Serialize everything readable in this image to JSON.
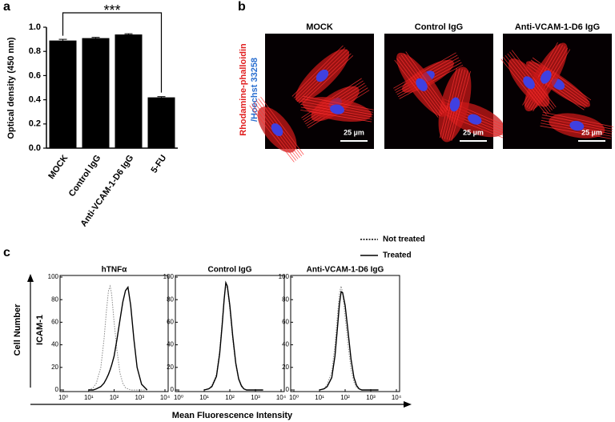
{
  "chart_data": [
    {
      "type": "bar",
      "panel": "a",
      "ylabel": "Optical density (450 nm)",
      "categories": [
        "MOCK",
        "Control IgG",
        "Anti-VCAM-1-D6 IgG",
        "5-FU"
      ],
      "values": [
        0.89,
        0.91,
        0.94,
        0.42
      ],
      "errors": [
        0.01,
        0.006,
        0.006,
        0.006
      ],
      "color": "#000000",
      "ylim": [
        0,
        1
      ],
      "yticks": [
        {
          "value": 0,
          "label": "0.0"
        },
        0.2,
        0.4,
        0.6,
        0.8,
        {
          "value": 1,
          "label": "1.0"
        }
      ],
      "annotation": "***"
    },
    {
      "type": "line",
      "panel": "c",
      "title": "hTNFα",
      "xscale": "log",
      "x": [
        10,
        15,
        20,
        30,
        40,
        50,
        60,
        70,
        80,
        100,
        130,
        170,
        220,
        280,
        350,
        450,
        600,
        800,
        1200,
        2000
      ],
      "series": [
        {
          "name": "Not treated",
          "color": "#888888",
          "dash": "dotted",
          "values": [
            0,
            2,
            6,
            20,
            45,
            70,
            88,
            92,
            85,
            60,
            35,
            15,
            6,
            2,
            1,
            0,
            0,
            0,
            0,
            0
          ]
        },
        {
          "name": "Treated",
          "color": "#000000",
          "dash": "solid",
          "values": [
            0,
            0,
            1,
            3,
            6,
            10,
            14,
            18,
            22,
            30,
            45,
            62,
            78,
            88,
            91,
            75,
            45,
            20,
            5,
            0
          ]
        }
      ],
      "xlim": [
        1,
        10000
      ],
      "xticks": [
        {
          "value": 1,
          "label": "10⁰"
        },
        {
          "value": 10,
          "label": "10¹"
        },
        {
          "value": 100,
          "label": "10²"
        },
        {
          "value": 1000,
          "label": "10³"
        },
        {
          "value": 10000,
          "label": "10⁴"
        }
      ],
      "ylim": [
        0,
        100
      ],
      "yticks": [
        0,
        20,
        40,
        60,
        80,
        100
      ]
    },
    {
      "type": "line",
      "panel": "c",
      "title": "Control IgG",
      "xscale": "log",
      "x": [
        10,
        15,
        20,
        30,
        40,
        50,
        60,
        70,
        80,
        100,
        130,
        170,
        220,
        280,
        350,
        450,
        600,
        800,
        1200,
        2000
      ],
      "series": [
        {
          "name": "Not treated",
          "color": "#888888",
          "dash": "dotted",
          "values": [
            0,
            1,
            4,
            14,
            35,
            60,
            82,
            93,
            90,
            72,
            45,
            22,
            9,
            3,
            1,
            0,
            0,
            0,
            0,
            0
          ]
        },
        {
          "name": "Treated",
          "color": "#000000",
          "dash": "solid",
          "values": [
            0,
            1,
            3,
            12,
            32,
            57,
            80,
            95,
            92,
            75,
            48,
            24,
            10,
            4,
            1,
            0,
            0,
            0,
            0,
            0
          ]
        }
      ],
      "xlim": [
        1,
        10000
      ],
      "xticks": [
        {
          "value": 1,
          "label": "10⁰"
        },
        {
          "value": 10,
          "label": "10¹"
        },
        {
          "value": 100,
          "label": "10²"
        },
        {
          "value": 1000,
          "label": "10³"
        },
        {
          "value": 10000,
          "label": "10⁴"
        }
      ],
      "ylim": [
        0,
        100
      ],
      "yticks": [
        0,
        20,
        40,
        60,
        80,
        100
      ]
    },
    {
      "type": "line",
      "panel": "c",
      "title": "Anti-VCAM-1-D6  IgG",
      "xscale": "log",
      "x": [
        10,
        15,
        20,
        30,
        40,
        50,
        60,
        70,
        80,
        100,
        130,
        170,
        220,
        280,
        350,
        450,
        600,
        800,
        1200,
        2000
      ],
      "series": [
        {
          "name": "Not treated",
          "color": "#888888",
          "dash": "dotted",
          "values": [
            0,
            1,
            5,
            16,
            40,
            66,
            86,
            92,
            86,
            65,
            40,
            18,
            7,
            2,
            1,
            0,
            0,
            0,
            0,
            0
          ]
        },
        {
          "name": "Treated",
          "color": "#000000",
          "dash": "solid",
          "values": [
            0,
            1,
            3,
            11,
            30,
            55,
            76,
            87,
            86,
            75,
            52,
            27,
            11,
            4,
            1,
            0,
            0,
            0,
            0,
            0
          ]
        }
      ],
      "xlim": [
        1,
        10000
      ],
      "xticks": [
        {
          "value": 1,
          "label": "10⁰"
        },
        {
          "value": 10,
          "label": "10¹"
        },
        {
          "value": 100,
          "label": "10²"
        },
        {
          "value": 1000,
          "label": "10³"
        },
        {
          "value": 10000,
          "label": "10⁴"
        }
      ],
      "ylim": [
        0,
        100
      ],
      "yticks": [
        0,
        20,
        40,
        60,
        80,
        100
      ]
    }
  ],
  "panel_b": {
    "panel": "b",
    "stain_red": "Rhodamine-phalloidin",
    "stain_blue": "/Hoechst 33258",
    "images": [
      {
        "title": "MOCK",
        "scale": "25 µm"
      },
      {
        "title": "Control IgG",
        "scale": "25 µm"
      },
      {
        "title": "Anti-VCAM-1-D6  IgG",
        "scale": "25 µm"
      }
    ]
  },
  "panel_c": {
    "ylabel": "Cell Number",
    "marker": "ICAM-1",
    "xlabel": "Mean Fluorescence Intensity"
  }
}
